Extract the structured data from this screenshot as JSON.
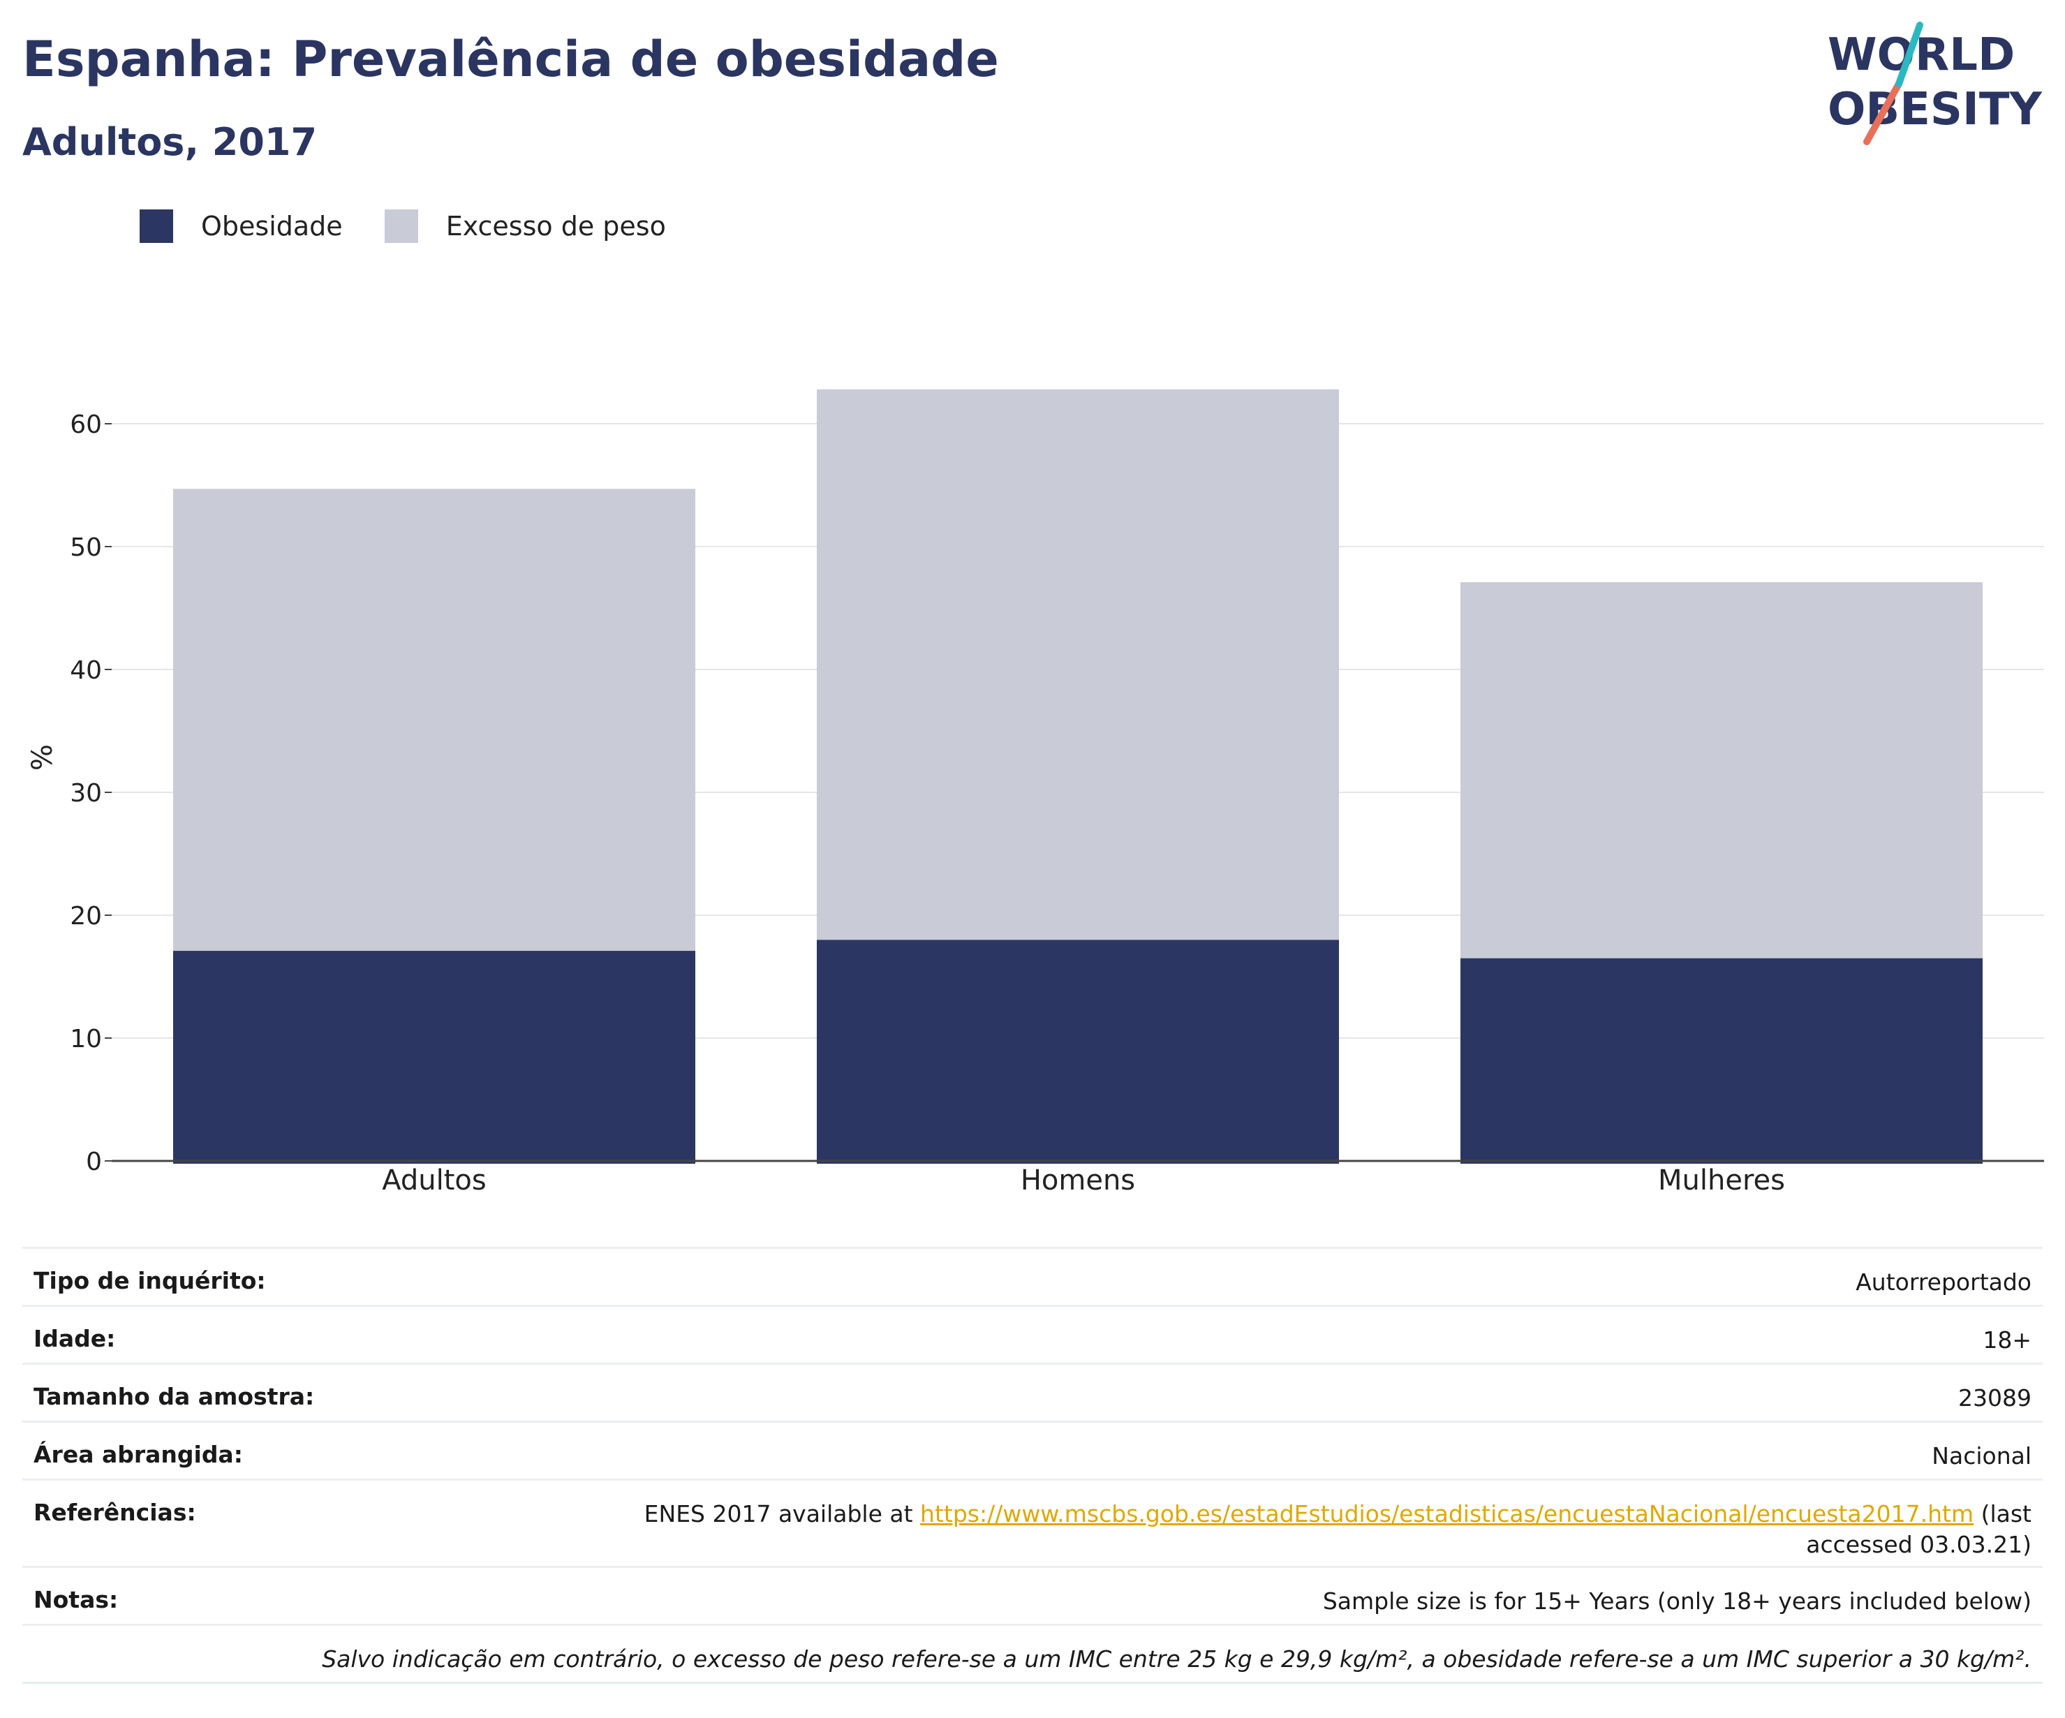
{
  "header": {
    "title": "Espanha: Prevalência de obesidade",
    "subtitle": "Adultos, 2017"
  },
  "logo": {
    "line1": "WORLD",
    "line2": "OBESITY"
  },
  "colors": {
    "obesity": "#2b3663",
    "overweight": "#c9cbd6",
    "title": "#2b3561",
    "link": "#e0a800"
  },
  "chart_data": {
    "type": "bar",
    "stacked": true,
    "categories": [
      "Adultos",
      "Homens",
      "Mulheres"
    ],
    "series": [
      {
        "name": "Obesidade",
        "values": [
          17.1,
          18.0,
          16.5
        ]
      },
      {
        "name": "Excesso de peso",
        "values": [
          37.6,
          44.8,
          30.6
        ]
      }
    ],
    "totals": [
      54.7,
      62.8,
      47.1
    ],
    "ylabel": "%",
    "ylim": [
      0,
      65
    ],
    "yticks": [
      0,
      10,
      20,
      30,
      40,
      50,
      60
    ],
    "grid": true,
    "legend_position": "top-left"
  },
  "info": {
    "survey_type": {
      "label": "Tipo de inquérito:",
      "value": "Autorreportado"
    },
    "age": {
      "label": "Idade:",
      "value": "18+"
    },
    "sample_size": {
      "label": "Tamanho da amostra:",
      "value": "23089"
    },
    "area": {
      "label": "Área abrangida:",
      "value": "Nacional"
    },
    "references": {
      "label": "Referências:",
      "prefix": "ENES 2017 available at ",
      "link": "https://www.mscbs.gob.es/estadEstudios/estadisticas/encuestaNacional/encuesta2017.htm",
      "suffix": " (last accessed 03.03.21)"
    },
    "notes": {
      "label": "Notas:",
      "value": "Sample size is for 15+ Years (only 18+ years included below)"
    },
    "footnote": "Salvo indicação em contrário, o excesso de peso refere-se a um IMC entre 25 kg e 29,9 kg/m², a obesidade refere-se a um IMC superior a 30 kg/m²."
  }
}
